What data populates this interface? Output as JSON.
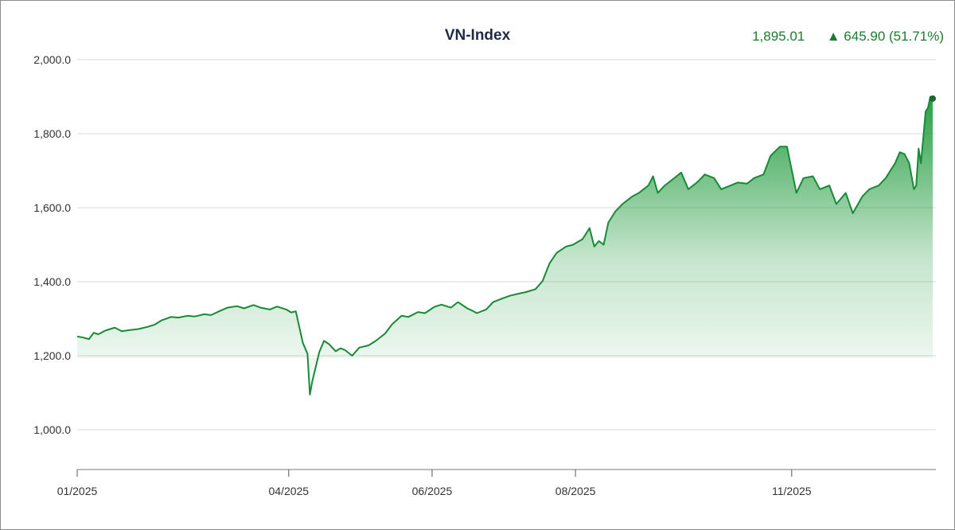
{
  "header": {
    "title": "VN-Index",
    "last_value": "1,895.01",
    "change_arrow": "▲",
    "change_text": "645.90 (51.71%)"
  },
  "colors": {
    "line": "#178a35",
    "fill_top": "#1f9a3c",
    "stats": "#1b7d2f",
    "grid": "#d9d9d9"
  },
  "chart_data": {
    "type": "area",
    "title": "VN-Index",
    "xlabel": "",
    "ylabel": "",
    "ylim": [
      880,
      2000
    ],
    "grid": true,
    "y_ticks": [
      {
        "value": 1000,
        "label": "1,000.0"
      },
      {
        "value": 1200,
        "label": "1,200.0"
      },
      {
        "value": 1400,
        "label": "1,400.0"
      },
      {
        "value": 1600,
        "label": "1,600.0"
      },
      {
        "value": 1800,
        "label": "1,800.0"
      },
      {
        "value": 2000,
        "label": "2,000.0"
      }
    ],
    "x_ticks": [
      {
        "date": "2025-01-01",
        "label": "01/2025"
      },
      {
        "date": "2025-04-01",
        "label": "04/2025"
      },
      {
        "date": "2025-06-01",
        "label": "06/2025"
      },
      {
        "date": "2025-08-01",
        "label": "08/2025"
      },
      {
        "date": "2025-11-01",
        "label": "11/2025"
      }
    ],
    "x_range": [
      "2025-01-01",
      "2025-12-31"
    ],
    "series": [
      {
        "values": [
          [
            "2025-01-01",
            1252
          ],
          [
            "2025-01-03",
            1250
          ],
          [
            "2025-01-06",
            1245
          ],
          [
            "2025-01-08",
            1262
          ],
          [
            "2025-01-10",
            1258
          ],
          [
            "2025-01-13",
            1268
          ],
          [
            "2025-01-15",
            1272
          ],
          [
            "2025-01-17",
            1276
          ],
          [
            "2025-01-20",
            1266
          ],
          [
            "2025-01-23",
            1269
          ],
          [
            "2025-01-27",
            1272
          ],
          [
            "2025-01-31",
            1278
          ],
          [
            "2025-02-03",
            1284
          ],
          [
            "2025-02-06",
            1296
          ],
          [
            "2025-02-10",
            1305
          ],
          [
            "2025-02-13",
            1303
          ],
          [
            "2025-02-17",
            1308
          ],
          [
            "2025-02-20",
            1306
          ],
          [
            "2025-02-24",
            1312
          ],
          [
            "2025-02-27",
            1310
          ],
          [
            "2025-03-03",
            1322
          ],
          [
            "2025-03-06",
            1330
          ],
          [
            "2025-03-10",
            1334
          ],
          [
            "2025-03-13",
            1328
          ],
          [
            "2025-03-17",
            1337
          ],
          [
            "2025-03-20",
            1330
          ],
          [
            "2025-03-24",
            1325
          ],
          [
            "2025-03-27",
            1333
          ],
          [
            "2025-03-31",
            1325
          ],
          [
            "2025-04-02",
            1317
          ],
          [
            "2025-04-04",
            1320
          ],
          [
            "2025-04-07",
            1235
          ],
          [
            "2025-04-09",
            1205
          ],
          [
            "2025-04-10",
            1095
          ],
          [
            "2025-04-11",
            1130
          ],
          [
            "2025-04-14",
            1210
          ],
          [
            "2025-04-16",
            1240
          ],
          [
            "2025-04-18",
            1232
          ],
          [
            "2025-04-21",
            1212
          ],
          [
            "2025-04-23",
            1220
          ],
          [
            "2025-04-25",
            1215
          ],
          [
            "2025-04-28",
            1200
          ],
          [
            "2025-05-01",
            1222
          ],
          [
            "2025-05-05",
            1228
          ],
          [
            "2025-05-08",
            1240
          ],
          [
            "2025-05-12",
            1260
          ],
          [
            "2025-05-15",
            1285
          ],
          [
            "2025-05-19",
            1308
          ],
          [
            "2025-05-22",
            1305
          ],
          [
            "2025-05-26",
            1318
          ],
          [
            "2025-05-29",
            1315
          ],
          [
            "2025-06-02",
            1332
          ],
          [
            "2025-06-05",
            1338
          ],
          [
            "2025-06-09",
            1330
          ],
          [
            "2025-06-12",
            1345
          ],
          [
            "2025-06-16",
            1328
          ],
          [
            "2025-06-18",
            1322
          ],
          [
            "2025-06-20",
            1315
          ],
          [
            "2025-06-24",
            1325
          ],
          [
            "2025-06-27",
            1345
          ],
          [
            "2025-07-01",
            1355
          ],
          [
            "2025-07-04",
            1362
          ],
          [
            "2025-07-08",
            1368
          ],
          [
            "2025-07-11",
            1372
          ],
          [
            "2025-07-15",
            1380
          ],
          [
            "2025-07-18",
            1402
          ],
          [
            "2025-07-21",
            1450
          ],
          [
            "2025-07-24",
            1478
          ],
          [
            "2025-07-28",
            1495
          ],
          [
            "2025-07-31",
            1500
          ],
          [
            "2025-08-04",
            1515
          ],
          [
            "2025-08-07",
            1545
          ],
          [
            "2025-08-09",
            1495
          ],
          [
            "2025-08-11",
            1510
          ],
          [
            "2025-08-13",
            1500
          ],
          [
            "2025-08-15",
            1560
          ],
          [
            "2025-08-18",
            1590
          ],
          [
            "2025-08-21",
            1610
          ],
          [
            "2025-08-25",
            1630
          ],
          [
            "2025-08-28",
            1640
          ],
          [
            "2025-09-01",
            1660
          ],
          [
            "2025-09-03",
            1685
          ],
          [
            "2025-09-05",
            1640
          ],
          [
            "2025-09-08",
            1660
          ],
          [
            "2025-09-11",
            1675
          ],
          [
            "2025-09-15",
            1695
          ],
          [
            "2025-09-18",
            1650
          ],
          [
            "2025-09-22",
            1670
          ],
          [
            "2025-09-25",
            1690
          ],
          [
            "2025-09-29",
            1680
          ],
          [
            "2025-10-02",
            1650
          ],
          [
            "2025-10-06",
            1660
          ],
          [
            "2025-10-09",
            1668
          ],
          [
            "2025-10-13",
            1665
          ],
          [
            "2025-10-16",
            1680
          ],
          [
            "2025-10-20",
            1690
          ],
          [
            "2025-10-23",
            1740
          ],
          [
            "2025-10-27",
            1765
          ],
          [
            "2025-10-30",
            1765
          ],
          [
            "2025-11-03",
            1640
          ],
          [
            "2025-11-06",
            1680
          ],
          [
            "2025-11-10",
            1685
          ],
          [
            "2025-11-13",
            1650
          ],
          [
            "2025-11-17",
            1660
          ],
          [
            "2025-11-20",
            1610
          ],
          [
            "2025-11-24",
            1640
          ],
          [
            "2025-11-27",
            1585
          ],
          [
            "2025-12-01",
            1630
          ],
          [
            "2025-12-04",
            1650
          ],
          [
            "2025-12-08",
            1660
          ],
          [
            "2025-12-11",
            1680
          ],
          [
            "2025-12-15",
            1720
          ],
          [
            "2025-12-17",
            1750
          ],
          [
            "2025-12-19",
            1745
          ],
          [
            "2025-12-21",
            1720
          ],
          [
            "2025-12-23",
            1650
          ],
          [
            "2025-12-24",
            1660
          ],
          [
            "2025-12-25",
            1760
          ],
          [
            "2025-12-26",
            1720
          ],
          [
            "2025-12-27",
            1790
          ],
          [
            "2025-12-28",
            1860
          ],
          [
            "2025-12-29",
            1870
          ],
          [
            "2025-12-30",
            1900
          ],
          [
            "2025-12-31",
            1895
          ]
        ]
      }
    ]
  }
}
